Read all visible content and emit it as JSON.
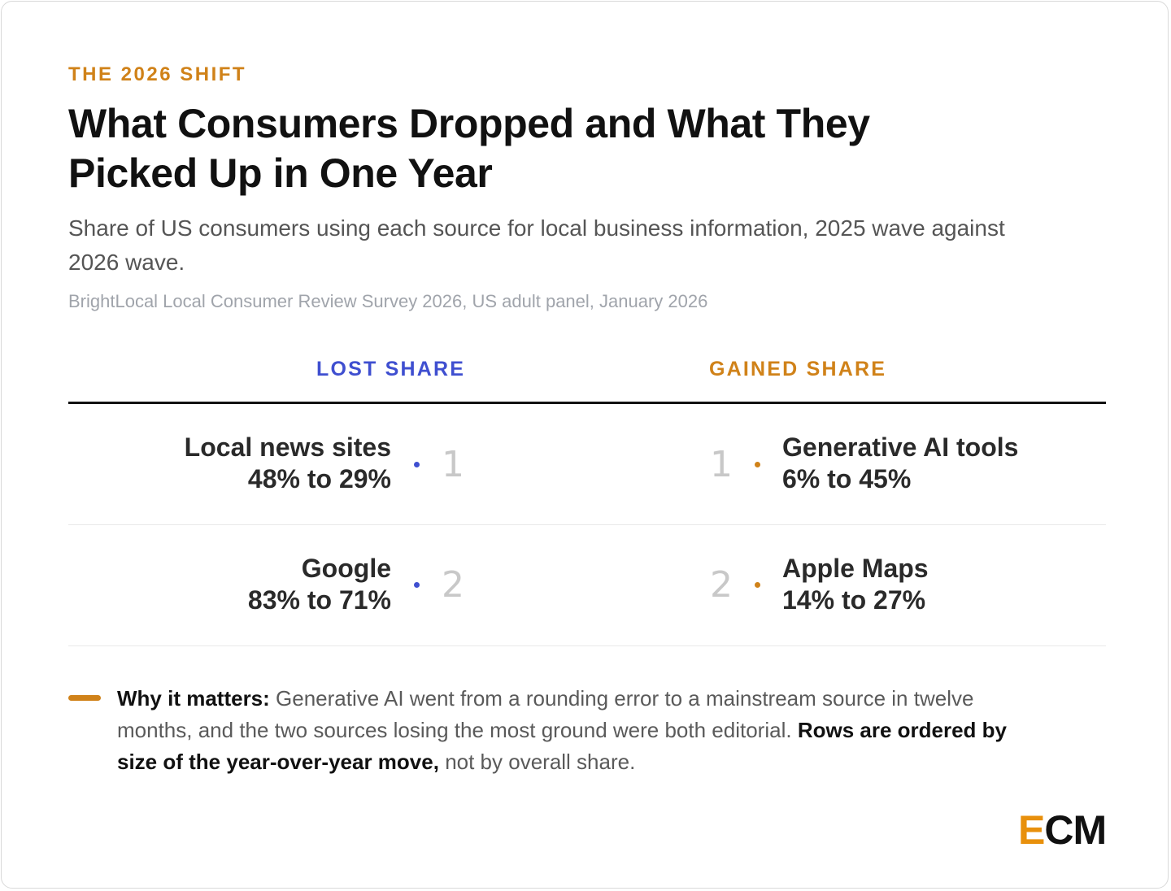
{
  "eyebrow": "THE 2026 SHIFT",
  "title": "What Consumers Dropped and What They Picked Up in One Year",
  "subtitle": "Share of US consumers using each source for local business information, 2025 wave against 2026 wave.",
  "source": "BrightLocal Local Consumer Review Survey 2026, US adult panel, January 2026",
  "colors": {
    "lost": "#3f4fd0",
    "gained": "#d08219",
    "logo_accent": "#e8900c"
  },
  "chart_data": {
    "type": "table",
    "columns": [
      {
        "heading": "LOST SHARE",
        "items": [
          {
            "rank": "1",
            "name": "Local news sites",
            "change": "48% to 29%",
            "from": 48,
            "to": 29
          },
          {
            "rank": "2",
            "name": "Google",
            "change": "83% to 71%",
            "from": 83,
            "to": 71
          }
        ]
      },
      {
        "heading": "GAINED SHARE",
        "items": [
          {
            "rank": "1",
            "name": "Generative AI tools",
            "change": "6% to 45%",
            "from": 6,
            "to": 45
          },
          {
            "rank": "2",
            "name": "Apple Maps",
            "change": "14% to 27%",
            "from": 14,
            "to": 27
          }
        ]
      }
    ]
  },
  "note": {
    "lead": "Why it matters:",
    "body": " Generative AI went from a rounding error to a mainstream source in twelve months, and the two sources losing the most ground were both editorial. ",
    "emph": "Rows are ordered by size of the year-over-year move,",
    "tail": " not by overall share."
  },
  "logo": {
    "first": "E",
    "rest": "CM"
  }
}
